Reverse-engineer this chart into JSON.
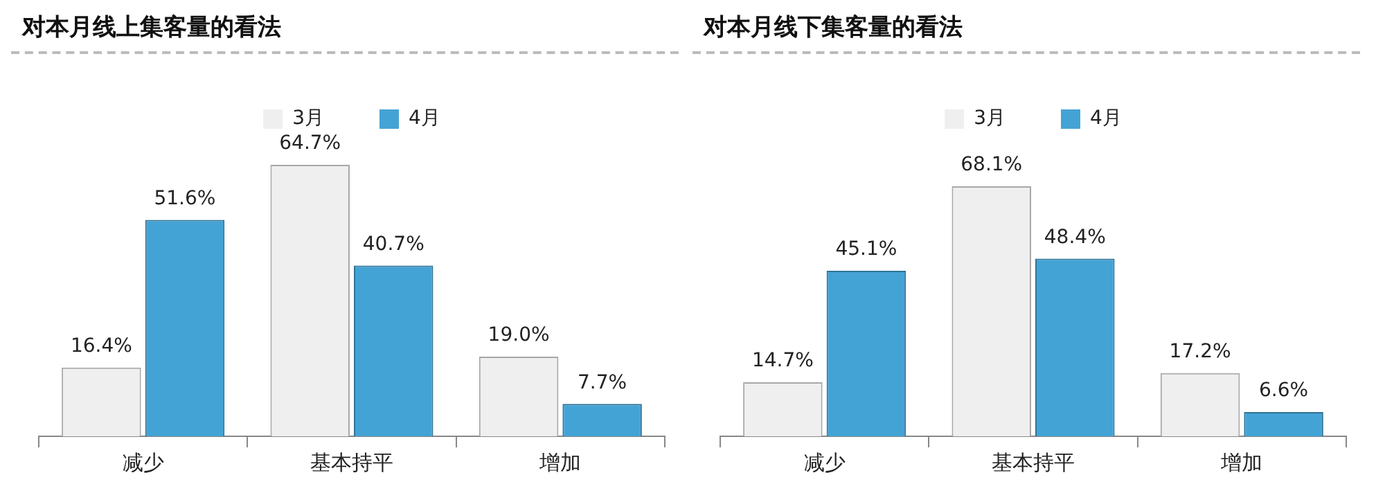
{
  "chart_data": [
    {
      "type": "bar",
      "title": "对本月线上集客量的看法",
      "categories": [
        "减少",
        "基本持平",
        "增加"
      ],
      "legend": "top",
      "series": [
        {
          "name": "3月",
          "color": "#efefef",
          "values": [
            16.4,
            64.7,
            19.0
          ],
          "value_labels": [
            "16.4%",
            "64.7%",
            "19.0%"
          ]
        },
        {
          "name": "4月",
          "color": "#44a3d5",
          "values": [
            51.6,
            40.7,
            7.7
          ],
          "value_labels": [
            "51.6%",
            "40.7%",
            "7.7%"
          ]
        }
      ]
    },
    {
      "type": "bar",
      "title": "对本月线下集客量的看法",
      "categories": [
        "减少",
        "基本持平",
        "增加"
      ],
      "legend": "top",
      "series": [
        {
          "name": "3月",
          "color": "#efefef",
          "values": [
            14.7,
            68.1,
            17.2
          ],
          "value_labels": [
            "14.7%",
            "68.1%",
            "17.2%"
          ]
        },
        {
          "name": "4月",
          "color": "#44a3d5",
          "values": [
            45.1,
            48.4,
            6.6
          ],
          "value_labels": [
            "45.1%",
            "48.4%",
            "6.6%"
          ]
        }
      ]
    }
  ]
}
